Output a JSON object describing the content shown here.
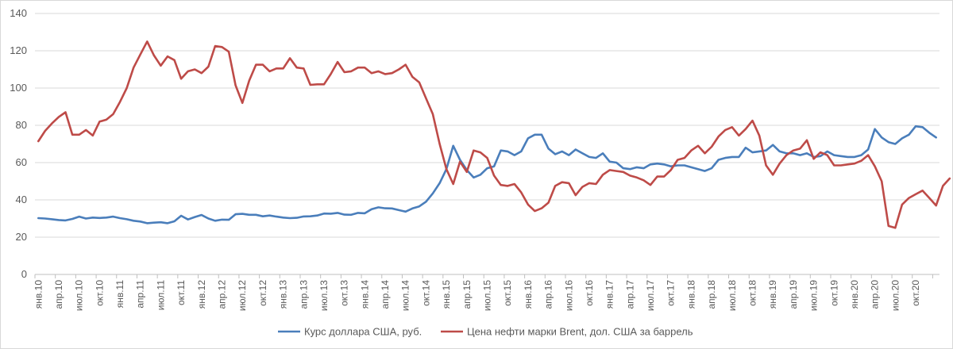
{
  "chart_data": {
    "type": "line",
    "title": "",
    "xlabel": "",
    "ylabel": "",
    "ylim": [
      0,
      140
    ],
    "y_ticks": [
      0,
      20,
      40,
      60,
      80,
      100,
      120,
      140
    ],
    "grid": "horizontal",
    "legend_position": "bottom",
    "x_tick_labels": [
      "янв.10",
      "апр.10",
      "июл.10",
      "окт.10",
      "янв.11",
      "апр.11",
      "июл.11",
      "окт.11",
      "янв.12",
      "апр.12",
      "июл.12",
      "окт.12",
      "янв.13",
      "апр.13",
      "июл.13",
      "окт.13",
      "янв.14",
      "апр.14",
      "июл.14",
      "окт.14",
      "янв.15",
      "апр.15",
      "июл.15",
      "окт.15",
      "янв.16",
      "апр.16",
      "июл.16",
      "окт.16",
      "янв.17",
      "апр.17",
      "июл.17",
      "окт.17",
      "янв.18",
      "апр.18",
      "июл.18",
      "окт.18",
      "янв.19",
      "апр.19",
      "июл.19",
      "окт.19",
      "янв.20",
      "апр.20",
      "июл.20",
      "окт.20"
    ],
    "x_start": "янв.10",
    "series": [
      {
        "name": "Курс доллара США, руб.",
        "color": "#4a7ebb",
        "values": [
          30.2,
          30.0,
          29.6,
          29.2,
          29.0,
          29.8,
          31.0,
          30.0,
          30.5,
          30.3,
          30.5,
          31.0,
          30.2,
          29.6,
          28.8,
          28.4,
          27.5,
          27.8,
          28.0,
          27.5,
          28.5,
          31.5,
          29.5,
          30.8,
          31.9,
          30.0,
          28.8,
          29.4,
          29.3,
          32.3,
          32.5,
          32.0,
          32.0,
          31.2,
          31.6,
          31.0,
          30.5,
          30.2,
          30.4,
          31.1,
          31.2,
          31.6,
          32.7,
          32.6,
          33.0,
          32.1,
          32.0,
          33.0,
          32.8,
          35.0,
          36.0,
          35.5,
          35.4,
          34.5,
          33.7,
          35.4,
          36.5,
          39.0,
          43.5,
          49.0,
          56.5,
          69.0,
          61.5,
          56.0,
          52.0,
          53.5,
          57.0,
          58.0,
          66.5,
          66.0,
          64.0,
          66.0,
          73.0,
          75.0,
          75.0,
          67.5,
          64.5,
          66.0,
          64.0,
          67.0,
          65.0,
          63.0,
          62.5,
          65.0,
          60.5,
          60.0,
          57.0,
          56.5,
          57.5,
          57.0,
          59.0,
          59.5,
          59.0,
          58.0,
          58.5,
          58.5,
          57.5,
          56.5,
          55.5,
          57.0,
          61.5,
          62.5,
          63.0,
          63.0,
          68.0,
          65.5,
          66.0,
          66.5,
          69.5,
          66.0,
          65.0,
          65.0,
          64.0,
          65.0,
          63.0,
          63.5,
          66.0,
          64.0,
          63.5,
          63.0,
          63.0,
          64.0,
          67.0,
          78.0,
          73.5,
          71.0,
          70.0,
          73.0,
          75.0,
          79.5,
          79.0,
          76.0,
          73.5
        ]
      },
      {
        "name": "Цена нефти марки Brent, дол. США за баррель",
        "color": "#be4b48",
        "values": [
          71.5,
          77.0,
          81.0,
          84.5,
          87.0,
          75.0,
          75.0,
          77.5,
          74.5,
          82.0,
          83.0,
          86.0,
          92.5,
          100.0,
          111.0,
          118.0,
          125.0,
          117.5,
          112.0,
          117.0,
          115.0,
          105.0,
          109.0,
          110.0,
          108.0,
          111.5,
          122.5,
          122.0,
          119.5,
          101.5,
          92.0,
          104.0,
          112.5,
          112.5,
          109.0,
          110.5,
          110.5,
          116.0,
          111.0,
          110.5,
          101.7,
          102.0,
          102.0,
          107.5,
          114.0,
          108.5,
          109.0,
          111.0,
          111.0,
          108.0,
          109.0,
          107.5,
          108.0,
          110.0,
          112.5,
          106.0,
          103.0,
          94.5,
          86.0,
          70.0,
          56.5,
          48.5,
          60.5,
          55.0,
          66.5,
          65.5,
          62.5,
          53.0,
          48.0,
          47.5,
          48.5,
          44.0,
          37.5,
          34.0,
          35.5,
          38.5,
          47.5,
          49.5,
          49.0,
          42.5,
          47.0,
          49.0,
          48.5,
          53.5,
          56.0,
          55.5,
          55.0,
          53.0,
          52.0,
          50.5,
          48.0,
          52.5,
          52.5,
          56.0,
          61.5,
          62.5,
          66.5,
          69.0,
          65.0,
          68.5,
          74.0,
          77.5,
          79.0,
          74.5,
          78.0,
          82.5,
          74.5,
          58.5,
          53.5,
          59.5,
          64.0,
          66.5,
          67.5,
          72.0,
          62.0,
          65.5,
          64.0,
          58.5,
          58.5,
          59.0,
          59.5,
          61.0,
          64.0,
          58.0,
          50.0,
          26.0,
          25.0,
          37.5,
          41.0,
          43.0,
          45.0,
          41.0,
          37.0,
          47.5,
          51.5
        ]
      }
    ]
  }
}
